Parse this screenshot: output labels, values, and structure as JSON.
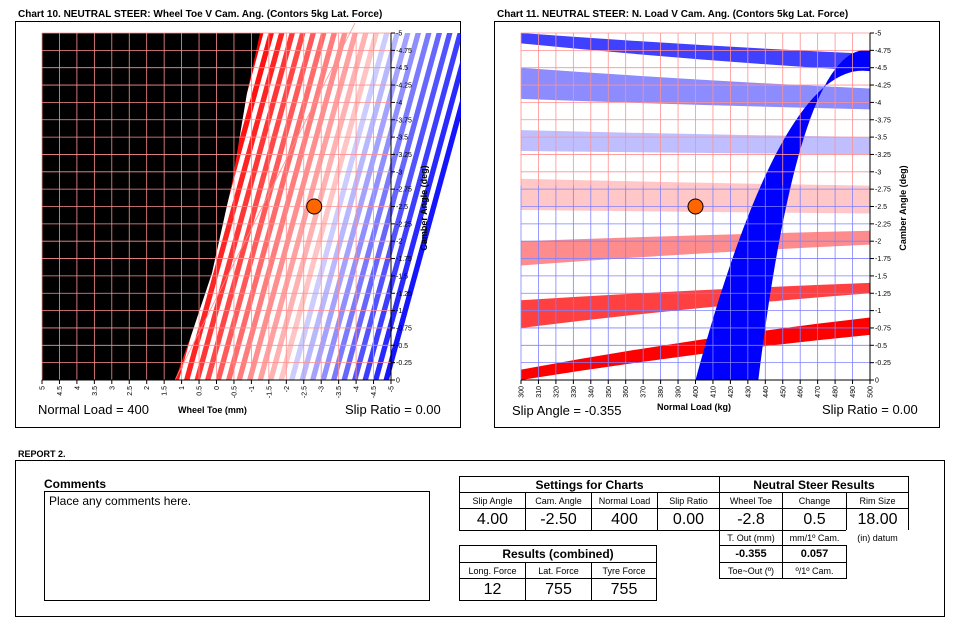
{
  "colors": {
    "red": "#ff0000",
    "blue": "#0000ff",
    "grid_red": "#ff9090",
    "grid_blue": "#8080ff",
    "marker": "#ff6600"
  },
  "chart10": {
    "title": "Chart 10. NEUTRAL STEER: Wheel Toe V Cam. Ang. (Contors 5kg Lat. Force)",
    "left_label": "Normal Load = 400",
    "xlabel": "Wheel Toe (mm)",
    "right_label": "Slip Ratio = 0.00",
    "ylabel": "Camber Angle (deg)"
  },
  "chart11": {
    "title": "Chart 11. NEUTRAL STEER: N. Load V Cam. Ang. (Contors 5kg Lat. Force)",
    "left_label": "Slip Angle = -0.355",
    "xlabel": "Normal Load (kg)",
    "right_label": "Slip Ratio = 0.00",
    "ylabel": "Camber Angle (deg)"
  },
  "chart_data": [
    {
      "type": "heatmap",
      "title": "Chart 10. NEUTRAL STEER: Wheel Toe V Cam. Ang. (Contors 5kg Lat. Force)",
      "xlabel": "Wheel Toe (mm)",
      "ylabel": "Camber Angle (deg)",
      "x_ticks": [
        "5",
        "4.5",
        "4",
        "3.5",
        "3",
        "2.5",
        "2",
        "1.5",
        "1",
        "0.5",
        "0",
        "-0.5",
        "-1",
        "-1.5",
        "-2",
        "-2.5",
        "-3",
        "-3.5",
        "-4",
        "-4.5",
        "-5"
      ],
      "xlim": [
        5,
        -5
      ],
      "y_ticks": [
        "-5",
        "-4.75",
        "-4.5",
        "-4.25",
        "-4",
        "-3.75",
        "-3.5",
        "-3.25",
        "-3",
        "-2.75",
        "-2.5",
        "-2.25",
        "-2",
        "-1.75",
        "-1.5",
        "-1.25",
        "-1",
        "-0.75",
        "-0.5",
        "-0.25",
        "0"
      ],
      "ylim": [
        0,
        -5
      ],
      "contour_step_kg": 5,
      "annotations": {
        "normal_load": 400,
        "slip_ratio": 0.0
      },
      "marker": {
        "x": -2.8,
        "y": -2.5
      }
    },
    {
      "type": "heatmap",
      "title": "Chart 11. NEUTRAL STEER: N. Load V Cam. Ang. (Contors 5kg Lat. Force)",
      "xlabel": "Normal Load (kg)",
      "ylabel": "Camber Angle (deg)",
      "x_ticks": [
        "300",
        "310",
        "320",
        "330",
        "340",
        "350",
        "360",
        "370",
        "380",
        "390",
        "400",
        "410",
        "420",
        "430",
        "440",
        "450",
        "460",
        "470",
        "480",
        "490",
        "500"
      ],
      "xlim": [
        300,
        500
      ],
      "y_ticks": [
        "-5",
        "-4.75",
        "-4.5",
        "-4.25",
        "-4",
        "-3.75",
        "-3.5",
        "-3.25",
        "-3",
        "-2.75",
        "-2.5",
        "-2.25",
        "-2",
        "-1.75",
        "-1.5",
        "-1.25",
        "-1",
        "-0.75",
        "-0.5",
        "-0.25",
        "0"
      ],
      "ylim": [
        0,
        -5
      ],
      "contour_step_kg": 5,
      "annotations": {
        "slip_angle": -0.355,
        "slip_ratio": 0.0
      },
      "marker": {
        "x": 400,
        "y": -2.5
      }
    }
  ],
  "report": {
    "title": "REPORT 2.",
    "comments_title": "Comments",
    "comments_text": "Place any comments here.",
    "settings": {
      "title": "Settings for Charts",
      "headers": [
        "Slip Angle",
        "Cam. Angle",
        "Normal Load",
        "Slip Ratio"
      ],
      "values": [
        "4.00",
        "-2.50",
        "400",
        "0.00"
      ]
    },
    "neutral": {
      "title": "Neutral Steer Results",
      "headers": [
        "Wheel Toe",
        "Change",
        "Rim Size"
      ],
      "values": [
        "-2.8",
        "0.5",
        "18.00"
      ],
      "units": [
        "T. Out (mm)",
        "mm/1º Cam.",
        "(in) datum"
      ],
      "values2": [
        "-0.355",
        "0.057"
      ],
      "units2": [
        "Toe~Out (º)",
        "º/1º Cam."
      ]
    },
    "results": {
      "title": "Results (combined)",
      "headers": [
        "Long. Force",
        "Lat. Force",
        "Tyre Force"
      ],
      "values": [
        "12",
        "755",
        "755"
      ]
    }
  }
}
